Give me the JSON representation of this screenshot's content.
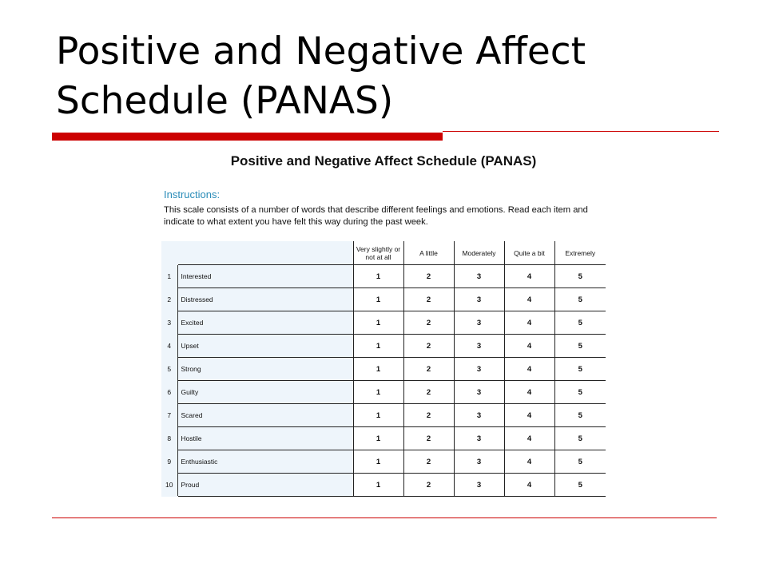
{
  "slide": {
    "title": "Positive and Negative Affect Schedule (PANAS)",
    "accent_color": "#cc0000"
  },
  "document": {
    "title": "Positive and Negative Affect Schedule (PANAS)",
    "instructions_heading": "Instructions:",
    "instructions_text": "This scale consists of a number of words that describe different feelings and emotions. Read each item and indicate to what extent you have felt this way during the past week.",
    "heading_color": "#2a8cb8"
  },
  "table": {
    "columns": [
      "Very slightly or not at all",
      "A little",
      "Moderately",
      "Quite a bit",
      "Extremely"
    ],
    "rows": [
      {
        "number": "1",
        "item": "Interested",
        "scores": [
          "1",
          "2",
          "3",
          "4",
          "5"
        ]
      },
      {
        "number": "2",
        "item": "Distressed",
        "scores": [
          "1",
          "2",
          "3",
          "4",
          "5"
        ]
      },
      {
        "number": "3",
        "item": "Excited",
        "scores": [
          "1",
          "2",
          "3",
          "4",
          "5"
        ]
      },
      {
        "number": "4",
        "item": "Upset",
        "scores": [
          "1",
          "2",
          "3",
          "4",
          "5"
        ]
      },
      {
        "number": "5",
        "item": "Strong",
        "scores": [
          "1",
          "2",
          "3",
          "4",
          "5"
        ]
      },
      {
        "number": "6",
        "item": "Guilty",
        "scores": [
          "1",
          "2",
          "3",
          "4",
          "5"
        ]
      },
      {
        "number": "7",
        "item": "Scared",
        "scores": [
          "1",
          "2",
          "3",
          "4",
          "5"
        ]
      },
      {
        "number": "8",
        "item": "Hostile",
        "scores": [
          "1",
          "2",
          "3",
          "4",
          "5"
        ]
      },
      {
        "number": "9",
        "item": "Enthusiastic",
        "scores": [
          "1",
          "2",
          "3",
          "4",
          "5"
        ]
      },
      {
        "number": "10",
        "item": "Proud",
        "scores": [
          "1",
          "2",
          "3",
          "4",
          "5"
        ]
      }
    ]
  }
}
